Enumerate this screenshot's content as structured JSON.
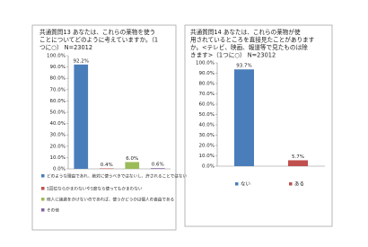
{
  "chart_data": [
    {
      "type": "bar",
      "title_lines": [
        "共通質問13 あなたは、これらの薬物を使う",
        "ことについてどのように考えていますか。（1",
        "つに○） N=23012"
      ],
      "categories": [
        "どのような理由であれ、絶対に使うべきではないし、許されることではない",
        "1回位ならかまわないや1度なら使ってもかまわない",
        "他人に迷惑をかけないのであれば、使うかどうかは個人の自由である",
        "その他"
      ],
      "values": [
        92.2,
        0.4,
        6.0,
        0.6
      ],
      "value_labels": [
        "92.2%",
        "0.4%",
        "6.0%",
        "0.6%"
      ],
      "colors": [
        "#4a7ebb",
        "#c0504d",
        "#9bbb59",
        "#8064a2"
      ],
      "ylim": [
        0,
        100
      ],
      "yticks": [
        {
          "value": 0,
          "label": "0.0%"
        },
        {
          "value": 10,
          "label": "10.0%"
        },
        {
          "value": 20,
          "label": "20.0%"
        },
        {
          "value": 30,
          "label": "30.0%"
        },
        {
          "value": 40,
          "label": "40.0%"
        },
        {
          "value": 50,
          "label": "50.0%"
        },
        {
          "value": 60,
          "label": "60.0%"
        },
        {
          "value": 70,
          "label": "70.0%"
        },
        {
          "value": 80,
          "label": "80.0%"
        },
        {
          "value": 90,
          "label": "90.0%"
        },
        {
          "value": 100,
          "label": "100.0%"
        }
      ],
      "legend": "bottom-list"
    },
    {
      "type": "bar",
      "title_lines": [
        "共通質問14 あなたは、これらの薬物が使",
        "用されているところを直接見たことがあります",
        "か。<テレビ、映画、報道等で見たものは除",
        "きます>（1つに○） N=23012"
      ],
      "categories": [
        "ない",
        "ある"
      ],
      "values": [
        93.7,
        5.7
      ],
      "value_labels": [
        "93.7%",
        "5.7%"
      ],
      "colors": [
        "#4a7ebb",
        "#c0504d"
      ],
      "ylim": [
        0,
        100
      ],
      "yticks": [
        {
          "value": 0,
          "label": "0.0%"
        },
        {
          "value": 10,
          "label": "10.0%"
        },
        {
          "value": 20,
          "label": "20.0%"
        },
        {
          "value": 30,
          "label": "30.0%"
        },
        {
          "value": 40,
          "label": "40.0%"
        },
        {
          "value": 50,
          "label": "50.0%"
        },
        {
          "value": 60,
          "label": "60.0%"
        },
        {
          "value": 70,
          "label": "70.0%"
        },
        {
          "value": 80,
          "label": "80.0%"
        },
        {
          "value": 90,
          "label": "90.0%"
        },
        {
          "value": 100,
          "label": "100.0%"
        }
      ],
      "legend": "bottom-row"
    }
  ]
}
